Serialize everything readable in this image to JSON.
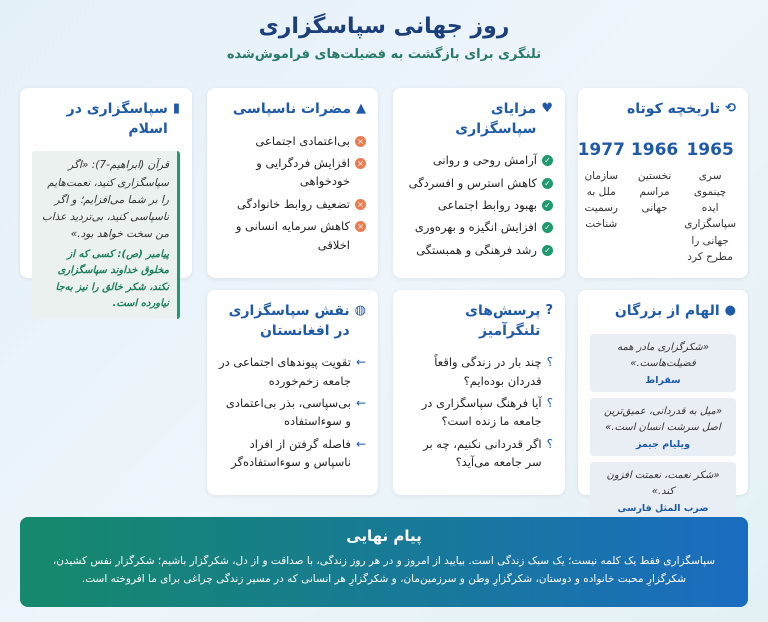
{
  "header": {
    "title": "روز جهانی سپاسگزاری",
    "subtitle": "تلنگری برای بازگشت به فضیلت‌های فراموش‌شده"
  },
  "history": {
    "title": "تاریخچه کوتاه",
    "icon": "history-icon",
    "items": [
      {
        "year": "1965",
        "text": "سری چینموی ایده سپاسگزاری جهانی را مطرح کرد"
      },
      {
        "year": "1966",
        "text": "نخستین مراسم جهانی"
      },
      {
        "year": "1977",
        "text": "سازمان ملل به رسمیت شناخت"
      }
    ]
  },
  "benefits": {
    "title": "مزایای سپاسگزاری",
    "icon": "heart-icon",
    "items": [
      "آرامش روحی و روانی",
      "کاهش استرس و افسردگی",
      "بهبود روابط اجتماعی",
      "افزایش انگیزه و بهره‌وری",
      "رشد فرهنگی و همبستگی"
    ]
  },
  "harms": {
    "title": "مضرات ناسپاسی",
    "icon": "warning-icon",
    "items": [
      "بی‌اعتمادی اجتماعی",
      "افزایش فردگرایی و خودخواهی",
      "تضعیف روابط خانوادگی",
      "کاهش سرمایه انسانی و اخلاقی"
    ]
  },
  "islam": {
    "title": "سپاسگزاری در اسلام",
    "icon": "book-icon",
    "quran": "قرآن (ابراهیم-7): «اگر سپاسگزاری کنید، نعمت‌هایم را بر شما می‌افزایم؛ و اگر ناسپاسی کنید، بی‌تردید عذاب من سخت خواهد بود.»",
    "prophet": "پیامبر (ص): کسی که از مخلوق خداوند سپاسگزاری نکند، شکر خالق را نیز به‌جا نیاورده است."
  },
  "inspiration": {
    "title": "الهام از بزرگان",
    "icon": "lightbulb-icon",
    "quotes": [
      {
        "text": "«شکرگزاری مادر همه فضیلت‌هاست.»",
        "author": "سقراط"
      },
      {
        "text": "«میل به قدردانی، عمیق‌ترین اصل سرشت انسان است.»",
        "author": "ویلیام جیمز"
      },
      {
        "text": "«شکر نعمت، نعمتت افزون کند.»",
        "author": "ضرب المثل فارسی"
      }
    ]
  },
  "questions": {
    "title": "پرسش‌های تلنگرآمیز",
    "icon": "question-icon",
    "items": [
      "چند بار در زندگی واقعاً قدردان بوده‌ایم؟",
      "آیا فرهنگ سپاسگزاری در جامعه ما زنده است؟",
      "اگر قدردانی نکنیم، چه بر سر جامعه می‌آید؟"
    ]
  },
  "afghanistan": {
    "title": "نقش سپاسگزاری در افغانستان",
    "icon": "globe-icon",
    "items": [
      "تقویت پیوندهای اجتماعی در جامعه زخم‌خورده",
      "بی‌سپاسی، بذر بی‌اعتمادی و سوءاستفاده",
      "فاصله گرفتن از افراد ناسپاس و سوءاستفاده‌گر"
    ]
  },
  "final": {
    "title": "پیام نهایی",
    "text": "سپاسگزاری فقط یک کلمه نیست؛ یک سبک زندگی است. بیایید از امروز و در هر روز زندگی، با صداقت و از دل، شکرگزار باشیم؛ شکرگزار نفس کشیدن، شکرگزارِ محبت خانواده و دوستان، شکرگزارِ وطن و سرزمین‌مان، و شکرگزارِ هر انسانی که در مسیر زندگی چراغی برای ما افروخته است."
  },
  "colors": {
    "accent": "#1e5aa8",
    "green": "#1f9a6c",
    "orange": "#ee7b4f"
  }
}
